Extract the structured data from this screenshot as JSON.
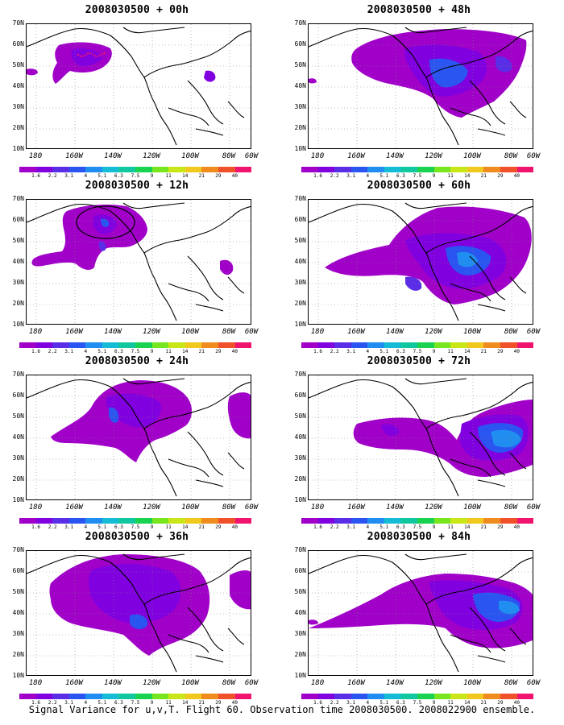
{
  "panels": [
    {
      "title": "2008030500 + 00h"
    },
    {
      "title": "2008030500 + 48h"
    },
    {
      "title": "2008030500 + 12h"
    },
    {
      "title": "2008030500 + 60h"
    },
    {
      "title": "2008030500 + 24h"
    },
    {
      "title": "2008030500 + 72h"
    },
    {
      "title": "2008030500 + 36h"
    },
    {
      "title": "2008030500 + 84h"
    }
  ],
  "axes": {
    "lat_labels": [
      "70N",
      "60N",
      "50N",
      "40N",
      "30N",
      "20N",
      "10N"
    ],
    "lon_labels": [
      "180",
      "160W",
      "140W",
      "120W",
      "100W",
      "80W",
      "60W"
    ]
  },
  "colorbar": {
    "labels": [
      "1.6",
      "2.2",
      "3.1",
      "4",
      "5.1",
      "6.3",
      "7.5",
      "9",
      "11",
      "14",
      "21",
      "29",
      "40"
    ],
    "colors": [
      "#a000c8",
      "#8000e0",
      "#5a2ee6",
      "#2b55f0",
      "#1f8ef0",
      "#15bcd6",
      "#10c8a0",
      "#18d250",
      "#78e61e",
      "#c8e618",
      "#f0c81e",
      "#f08c1e",
      "#f0502a",
      "#f0146e"
    ]
  },
  "fill_colors": {
    "level1": "#a000c8",
    "level2": "#8000e0",
    "level3": "#5a2ee6",
    "level4": "#2b55f0",
    "level5": "#1f8ef0",
    "level6": "#15bcd6"
  },
  "caption": "Signal Variance for u,v,T. Flight 60. Observation time 2008030500. 2008022900 ensemble."
}
